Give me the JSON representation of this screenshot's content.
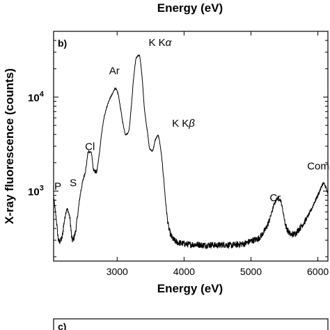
{
  "chart_data": [
    {
      "panel_label": "",
      "type": "line",
      "xlabel": "Energy (eV)",
      "ylabel": "",
      "partially_visible": true
    },
    {
      "panel_label": "b)",
      "type": "line",
      "xlabel": "Energy (eV)",
      "ylabel": "X-ray fluorescence (counts)",
      "xlim": [
        2050,
        6150
      ],
      "ylim": [
        180,
        50000
      ],
      "yscale": "log",
      "grid": false,
      "legend": "none",
      "line_color": "#000000",
      "x_ticks": [
        {
          "value": 3000,
          "label": "3000"
        },
        {
          "value": 4000,
          "label": "4000"
        },
        {
          "value": 5000,
          "label": "5000"
        },
        {
          "value": 6000,
          "label": "6000"
        }
      ],
      "y_ticks": [
        {
          "value": 1000,
          "base": "10",
          "exp": "3"
        },
        {
          "value": 10000,
          "base": "10",
          "exp": "4"
        }
      ],
      "x": [
        2050,
        2090,
        2130,
        2170,
        2210,
        2250,
        2290,
        2330,
        2370,
        2410,
        2450,
        2490,
        2530,
        2570,
        2610,
        2650,
        2690,
        2730,
        2770,
        2810,
        2850,
        2890,
        2930,
        2970,
        3010,
        3050,
        3090,
        3130,
        3170,
        3210,
        3250,
        3290,
        3330,
        3370,
        3410,
        3450,
        3490,
        3530,
        3570,
        3610,
        3650,
        3690,
        3730,
        3770,
        3810,
        3850,
        3900,
        4000,
        4100,
        4200,
        4300,
        4400,
        4500,
        4600,
        4700,
        4800,
        4900,
        5000,
        5100,
        5200,
        5250,
        5300,
        5350,
        5400,
        5440,
        5480,
        5520,
        5560,
        5600,
        5650,
        5700,
        5750,
        5800,
        5850,
        5900,
        5950,
        6000,
        6040,
        6080,
        6120,
        6150
      ],
      "y": [
        880,
        500,
        290,
        310,
        480,
        640,
        530,
        300,
        350,
        560,
        930,
        1300,
        1700,
        2600,
        2600,
        1650,
        1600,
        2400,
        4200,
        6300,
        8000,
        9600,
        10800,
        12300,
        11000,
        7600,
        5100,
        4000,
        4300,
        7800,
        17000,
        26500,
        27500,
        17000,
        7200,
        4400,
        2800,
        2700,
        3500,
        3900,
        2800,
        1500,
        700,
        410,
        330,
        300,
        285,
        275,
        270,
        270,
        265,
        268,
        265,
        270,
        265,
        270,
        275,
        295,
        310,
        375,
        440,
        560,
        730,
        840,
        800,
        600,
        430,
        370,
        345,
        350,
        380,
        420,
        470,
        540,
        630,
        760,
        900,
        1050,
        1200,
        1100,
        900
      ]
    },
    {
      "panel_label": "c)",
      "type": "line",
      "partially_visible": true
    }
  ],
  "annotations": [
    {
      "id": "p",
      "text": "P",
      "x": 2060,
      "y": 1030
    },
    {
      "id": "s",
      "text": "S",
      "x": 2290,
      "y": 1130
    },
    {
      "id": "cl",
      "text": "Cl",
      "x": 2520,
      "y": 2720
    },
    {
      "id": "ar",
      "text": "Ar",
      "x": 2880,
      "y": 17500
    },
    {
      "id": "kka",
      "text": "K K",
      "greek": "α",
      "x": 3470,
      "y": 35000
    },
    {
      "id": "kkb",
      "text": "K K",
      "greek": "β",
      "x": 3820,
      "y": 4850
    },
    {
      "id": "cr",
      "text": "Cr",
      "x": 5280,
      "y": 780
    },
    {
      "id": "compton",
      "text": "Compton",
      "x": 5840,
      "y": 1700
    }
  ]
}
